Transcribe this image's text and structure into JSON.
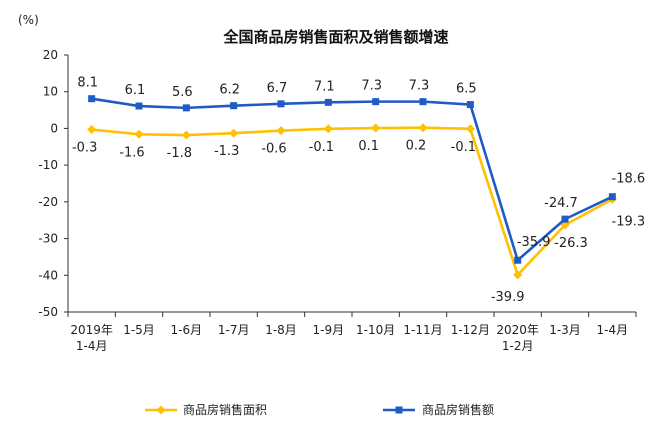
{
  "chart_data": {
    "type": "line",
    "title": "全国商品房销售面积及销售额增速",
    "unit_label": "(%)",
    "ylim": [
      -50,
      20
    ],
    "yticks": [
      20,
      10,
      0,
      -10,
      -20,
      -30,
      -40,
      -50
    ],
    "grid": false,
    "legend": "bottom",
    "categories": [
      [
        "2019年",
        "1-4月"
      ],
      [
        "1-5月"
      ],
      [
        "1-6月"
      ],
      [
        "1-7月"
      ],
      [
        "1-8月"
      ],
      [
        "1-9月"
      ],
      [
        "1-10月"
      ],
      [
        "1-11月"
      ],
      [
        "1-12月"
      ],
      [
        "2020年",
        "1-2月"
      ],
      [
        "1-3月"
      ],
      [
        "1-4月"
      ]
    ],
    "series": [
      {
        "name": "商品房销售面积",
        "color": "#FFC000",
        "marker": "diamond",
        "values": [
          -0.3,
          -1.6,
          -1.8,
          -1.3,
          -0.6,
          -0.1,
          0.1,
          0.2,
          -0.1,
          -39.9,
          -26.3,
          -19.3
        ],
        "labels": [
          "-0.3",
          "-1.6",
          "-1.8",
          "-1.3",
          "-0.6",
          "-0.1",
          "0.1",
          "0.2",
          "-0.1",
          "-39.9",
          "-26.3",
          "-19.3"
        ]
      },
      {
        "name": "商品房销售额",
        "color": "#1F5BC4",
        "marker": "square",
        "values": [
          8.1,
          6.1,
          5.6,
          6.2,
          6.7,
          7.1,
          7.3,
          7.3,
          6.5,
          -35.9,
          -24.7,
          -18.6
        ],
        "labels": [
          "8.1",
          "6.1",
          "5.6",
          "6.2",
          "6.7",
          "7.1",
          "7.3",
          "7.3",
          "6.5",
          "-35.9",
          "-24.7",
          "-18.6"
        ]
      }
    ]
  }
}
